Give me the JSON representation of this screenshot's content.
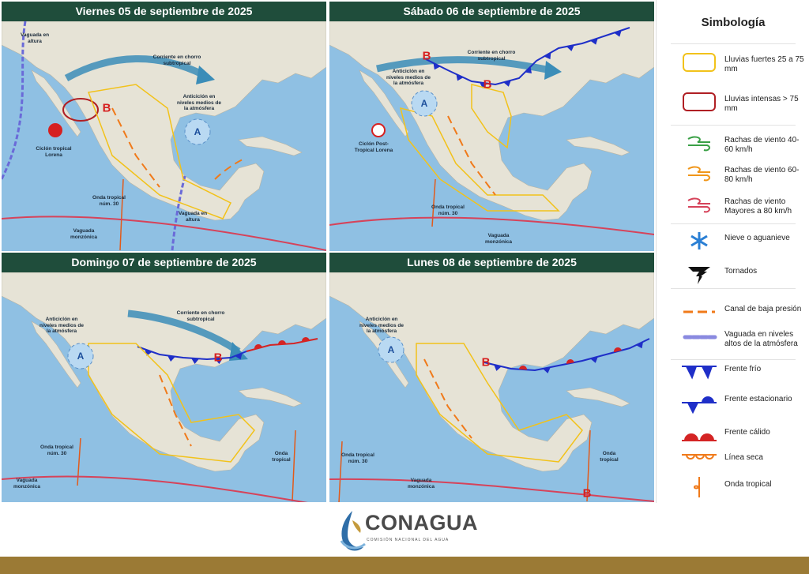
{
  "panels": [
    {
      "title": "Viernes 05 de septiembre de 2025",
      "labels": [
        "Vaguada en altura",
        "Corriente en chorro subtropical",
        "Anticiclón en niveles medios de la atmósfera",
        "Ciclón tropical Lorena",
        "Onda tropical núm. 30",
        "Vaguada en altura",
        "Vaguada monzónica",
        "B",
        "A"
      ]
    },
    {
      "title": "Sábado 06 de septiembre de 2025",
      "labels": [
        "Corriente en chorro subtropical",
        "Anticiclón en niveles medios de la atmósfera",
        "Ciclón Post- Tropical Lorena",
        "Onda tropical núm. 30",
        "Vaguada monzónica",
        "B",
        "B",
        "A"
      ]
    },
    {
      "title": "Domingo 07 de septiembre de 2025",
      "labels": [
        "Anticiclón en niveles medios de la atmósfera",
        "Corriente en chorro subtropical",
        "Onda tropical núm. 30",
        "Onda tropical",
        "Vaguada monzónica",
        "A",
        "B"
      ]
    },
    {
      "title": "Lunes 08 de septiembre de 2025",
      "labels": [
        "Anticiclón en niveles medios de la atmósfera",
        "Onda tropical núm. 30",
        "Onda tropical",
        "Vaguada monzónica",
        "A",
        "B",
        "B"
      ]
    }
  ],
  "legend": {
    "title": "Simbología",
    "items": [
      "Lluvias fuertes 25 a 75 mm",
      "Lluvias intensas > 75 mm",
      "Rachas de viento 40-60 km/h",
      "Rachas de viento 60-80 km/h",
      "Rachas de viento Mayores a 80 km/h",
      "Nieve o aguanieve",
      "Tornados",
      "Canal de baja presión",
      "Vaguada en niveles altos de la atmósfera",
      "Frente frío",
      "Frente estacionario",
      "Frente cálido",
      "Línea seca",
      "Onda tropical"
    ]
  },
  "footer": {
    "logo": "CONAGUA",
    "subtitle": "COMISIÓN NACIONAL DEL AGUA"
  }
}
